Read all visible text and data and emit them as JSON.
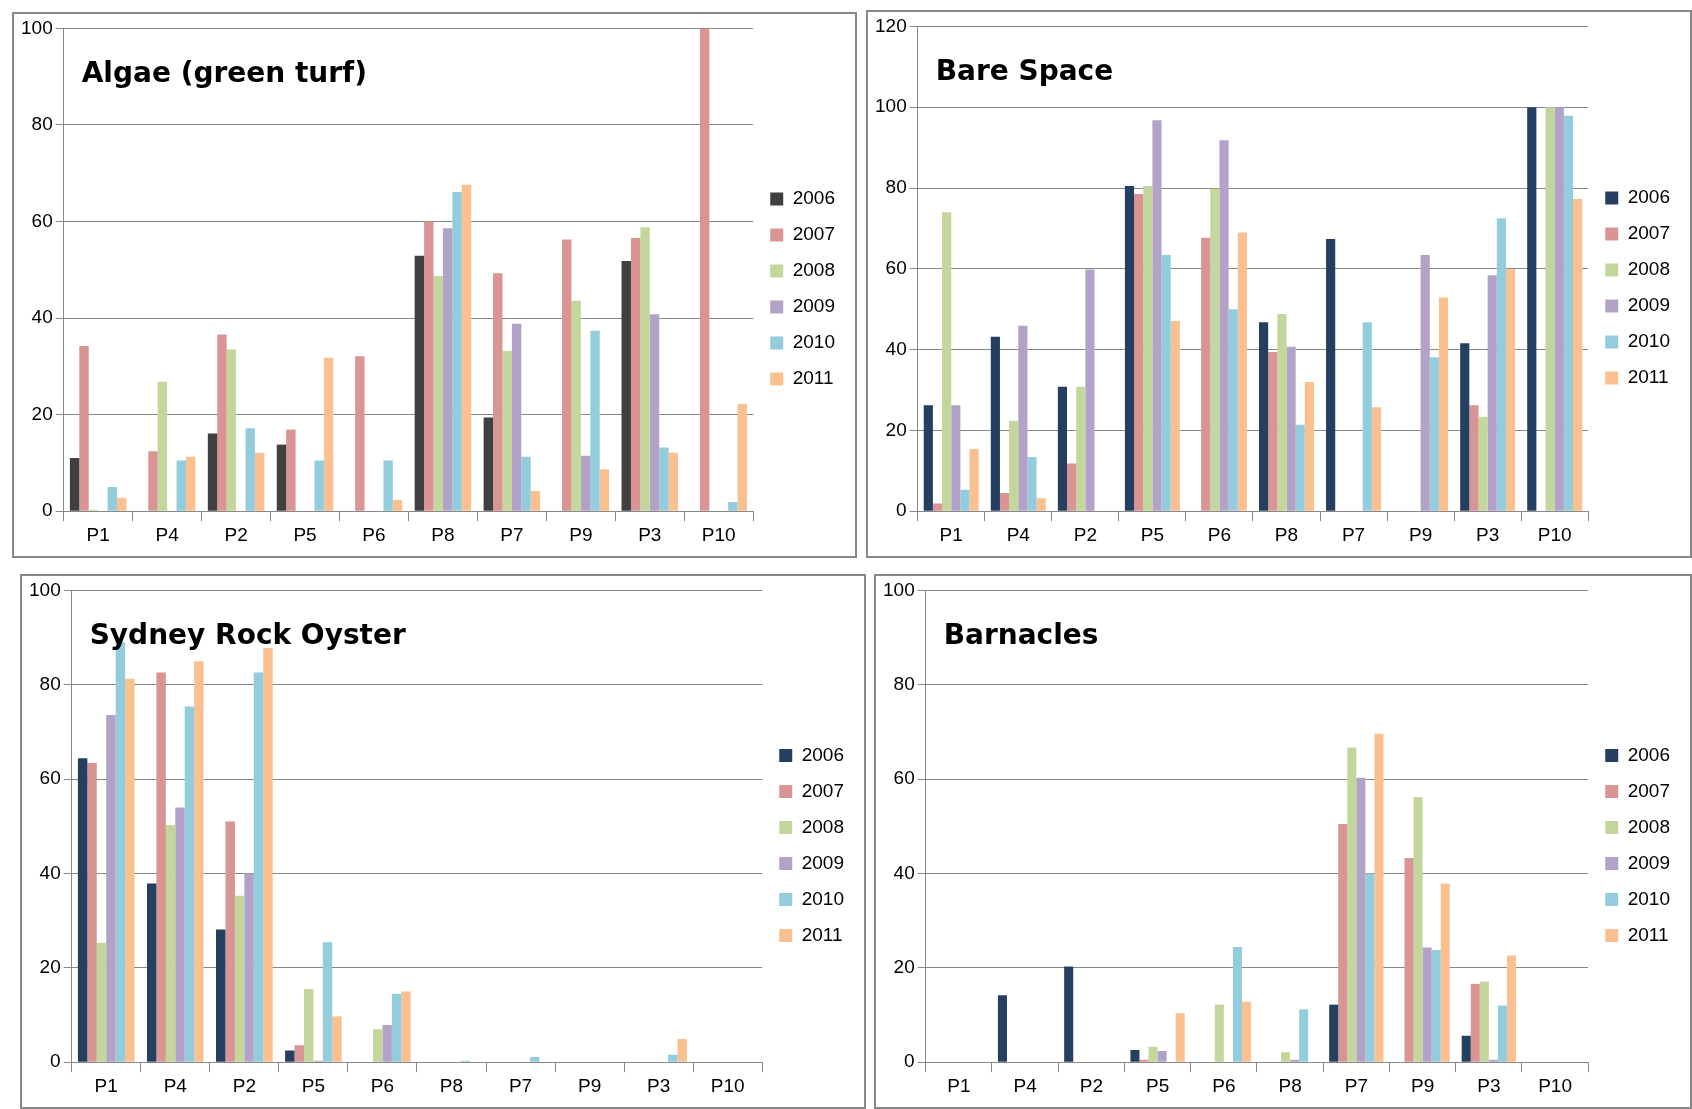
{
  "chart_data": [
    {
      "type": "bar",
      "title": "Algae (green turf)",
      "categories": [
        "P1",
        "P4",
        "P2",
        "P5",
        "P6",
        "P8",
        "P7",
        "P9",
        "P3",
        "P10"
      ],
      "ylim": [
        0,
        100
      ],
      "yticks": [
        0,
        20,
        40,
        60,
        80,
        100
      ],
      "grid": "y",
      "legend": "right",
      "series": [
        {
          "name": "2006",
          "color": "#404040",
          "values": [
            11,
            0,
            16.1,
            13.8,
            0,
            52.9,
            19.4,
            0,
            51.8,
            0
          ]
        },
        {
          "name": "2007",
          "color": "#d99594",
          "values": [
            34.2,
            12.4,
            36.6,
            16.9,
            32.1,
            60,
            49.3,
            56.3,
            56.6,
            100
          ]
        },
        {
          "name": "2008",
          "color": "#c3d69b",
          "values": [
            0.3,
            26.8,
            33.5,
            0,
            0,
            48.7,
            33.2,
            43.6,
            58.8,
            0
          ]
        },
        {
          "name": "2009",
          "color": "#b3a2c7",
          "values": [
            0,
            0,
            0,
            0,
            0,
            58.6,
            38.8,
            11.5,
            40.8,
            0
          ]
        },
        {
          "name": "2010",
          "color": "#93cddd",
          "values": [
            5,
            10.5,
            17.2,
            10.5,
            10.5,
            66.1,
            11.3,
            37.4,
            13.2,
            1.9
          ]
        },
        {
          "name": "2011",
          "color": "#fac090",
          "values": [
            2.8,
            11.3,
            12.1,
            31.8,
            2.3,
            67.6,
            4.2,
            8.7,
            12.1,
            22.2
          ]
        }
      ]
    },
    {
      "type": "bar",
      "title": "Bare Space",
      "categories": [
        "P1",
        "P4",
        "P2",
        "P5",
        "P6",
        "P8",
        "P7",
        "P9",
        "P3",
        "P10"
      ],
      "ylim": [
        0,
        120
      ],
      "yticks": [
        0,
        20,
        40,
        60,
        80,
        100,
        120
      ],
      "grid": "y",
      "legend": "right",
      "series": [
        {
          "name": "2006",
          "color": "#243f60",
          "values": [
            26.2,
            43.2,
            30.8,
            80.5,
            0,
            46.8,
            67.4,
            0,
            41.6,
            100
          ]
        },
        {
          "name": "2007",
          "color": "#d99594",
          "values": [
            1.9,
            4.5,
            11.8,
            78.5,
            67.7,
            39.4,
            0,
            0,
            26.2,
            0
          ]
        },
        {
          "name": "2008",
          "color": "#c3d69b",
          "values": [
            74,
            22.4,
            30.8,
            80.5,
            79.8,
            48.8,
            0,
            0,
            23.4,
            100
          ]
        },
        {
          "name": "2009",
          "color": "#b3a2c7",
          "values": [
            26.2,
            45.9,
            59.8,
            96.8,
            91.8,
            40.7,
            0,
            63.4,
            58.4,
            100
          ]
        },
        {
          "name": "2010",
          "color": "#93cddd",
          "values": [
            5.3,
            13.4,
            0,
            63.4,
            50,
            21.4,
            46.8,
            38.1,
            72.5,
            97.9
          ]
        },
        {
          "name": "2011",
          "color": "#fac090",
          "values": [
            15.4,
            3.2,
            0,
            47.1,
            69,
            32,
            25.7,
            52.9,
            59.9,
            77.3
          ]
        }
      ]
    },
    {
      "type": "bar",
      "title": "Sydney Rock Oyster",
      "categories": [
        "P1",
        "P4",
        "P2",
        "P5",
        "P6",
        "P8",
        "P7",
        "P9",
        "P3",
        "P10"
      ],
      "ylim": [
        0,
        100
      ],
      "yticks": [
        0,
        20,
        40,
        60,
        80,
        100
      ],
      "grid": "y",
      "legend": "right",
      "series": [
        {
          "name": "2006",
          "color": "#243f60",
          "values": [
            64.4,
            37.9,
            28.1,
            2.5,
            0,
            0,
            0,
            0,
            0,
            0
          ]
        },
        {
          "name": "2007",
          "color": "#d99594",
          "values": [
            63.4,
            82.6,
            51,
            3.6,
            0,
            0,
            0,
            0,
            0,
            0
          ]
        },
        {
          "name": "2008",
          "color": "#c3d69b",
          "values": [
            25.3,
            50.3,
            35.3,
            15.5,
            7,
            0,
            0,
            0,
            0,
            0
          ]
        },
        {
          "name": "2009",
          "color": "#b3a2c7",
          "values": [
            73.6,
            54,
            40,
            0.3,
            7.9,
            0,
            0,
            0,
            0,
            0
          ]
        },
        {
          "name": "2010",
          "color": "#93cddd",
          "values": [
            89,
            75.4,
            82.6,
            25.4,
            14.5,
            0.3,
            1.1,
            0,
            1.6,
            0
          ]
        },
        {
          "name": "2011",
          "color": "#fac090",
          "values": [
            81.3,
            85,
            87.8,
            9.7,
            15,
            0,
            0,
            0,
            4.9,
            0
          ]
        }
      ]
    },
    {
      "type": "bar",
      "title": "Barnacles",
      "categories": [
        "P1",
        "P4",
        "P2",
        "P5",
        "P6",
        "P8",
        "P7",
        "P9",
        "P3",
        "P10"
      ],
      "ylim": [
        0,
        100
      ],
      "yticks": [
        0,
        20,
        40,
        60,
        80,
        100
      ],
      "grid": "y",
      "legend": "right",
      "series": [
        {
          "name": "2006",
          "color": "#243f60",
          "values": [
            0,
            14.2,
            20.3,
            2.6,
            0,
            0,
            12.2,
            0,
            5.6,
            0
          ]
        },
        {
          "name": "2007",
          "color": "#d99594",
          "values": [
            0,
            0,
            0,
            0.5,
            0,
            0,
            50.5,
            43.3,
            16.6,
            0
          ]
        },
        {
          "name": "2008",
          "color": "#c3d69b",
          "values": [
            0,
            0,
            0,
            3.3,
            12.2,
            2.1,
            66.7,
            56.2,
            17.1,
            0
          ]
        },
        {
          "name": "2009",
          "color": "#b3a2c7",
          "values": [
            0,
            0,
            0,
            2.4,
            0,
            0.5,
            60.3,
            24.3,
            0.5,
            0
          ]
        },
        {
          "name": "2010",
          "color": "#93cddd",
          "values": [
            0,
            0,
            0,
            0,
            24.4,
            11.2,
            40,
            23.8,
            12,
            0
          ]
        },
        {
          "name": "2011",
          "color": "#fac090",
          "values": [
            0,
            0,
            0,
            10.4,
            12.8,
            0,
            69.6,
            37.9,
            22.6,
            0
          ]
        }
      ]
    }
  ]
}
